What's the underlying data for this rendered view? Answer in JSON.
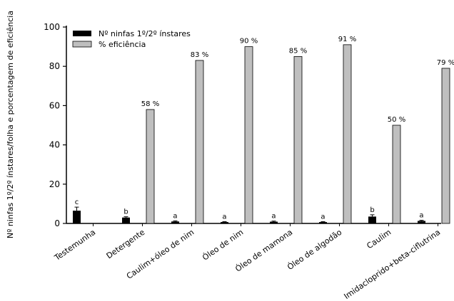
{
  "chart_data": {
    "type": "bar",
    "ylabel": "Nº ninfas 1º/2º ínstares/folha e porcentagem de eficiência",
    "xlabel": "",
    "ylim": [
      0,
      100
    ],
    "yticks": [
      0,
      20,
      40,
      60,
      80,
      100
    ],
    "categories": [
      "Testemunha",
      "Detergente",
      "Caulim+óleo de nim",
      "Óleo de nim",
      "Óleo de mamona",
      "Óleo de algodão",
      "Caulim",
      "Imidacloprido+beta-ciflutrina"
    ],
    "series": [
      {
        "name": "Nº ninfas 1º/2º ínstares",
        "color": "#000000",
        "values": [
          6.5,
          3.0,
          1.0,
          0.7,
          0.9,
          0.7,
          3.5,
          1.3
        ],
        "errors": [
          1.8,
          0.4,
          0.3,
          0.2,
          0.3,
          0.2,
          0.9,
          0.3
        ],
        "labels": [
          "c",
          "b",
          "a",
          "a",
          "a",
          "a",
          "b",
          "a"
        ]
      },
      {
        "name": "% eficiência",
        "color": "#bfbfbf",
        "values": [
          null,
          58,
          83,
          90,
          85,
          91,
          50,
          79
        ],
        "labels": [
          "",
          "58 %",
          "83 %",
          "90 %",
          "85 %",
          "91 %",
          "50 %",
          "79 %"
        ]
      }
    ],
    "legend_position": "top-left",
    "grid": false
  }
}
